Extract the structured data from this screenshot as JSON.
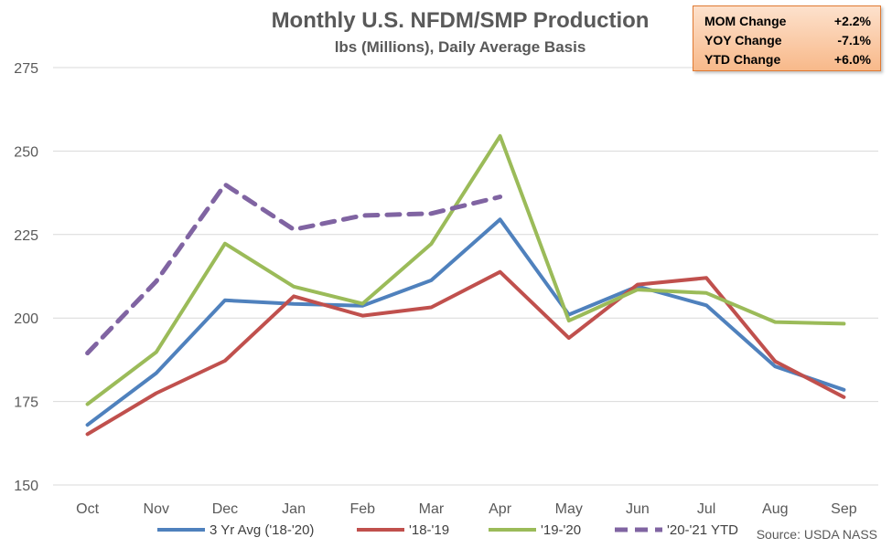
{
  "chart_data": {
    "type": "line",
    "title": "Monthly U.S. NFDM/SMP Production",
    "subtitle": "lbs (Millions), Daily Average Basis",
    "categories": [
      "Oct",
      "Nov",
      "Dec",
      "Jan",
      "Feb",
      "Mar",
      "Apr",
      "May",
      "Jun",
      "Jul",
      "Aug",
      "Sep"
    ],
    "ylim": [
      150,
      275
    ],
    "yticks": [
      150,
      175,
      200,
      225,
      250,
      275
    ],
    "grid": true,
    "legend": "bottom",
    "source": "Source: USDA NASS",
    "series": [
      {
        "name": "3 Yr Avg ('18-'20)",
        "color": "#4f81bd",
        "dash": false,
        "values": [
          168.0,
          183.5,
          205.3,
          204.2,
          203.7,
          211.3,
          229.5,
          201.0,
          209.5,
          203.8,
          185.5,
          178.5
        ]
      },
      {
        "name": "'18-'19",
        "color": "#c0504d",
        "dash": false,
        "values": [
          165.2,
          177.5,
          187.2,
          206.5,
          200.7,
          203.2,
          213.8,
          194.0,
          210.0,
          212.0,
          187.0,
          176.3
        ]
      },
      {
        "name": "'19-'20",
        "color": "#9bbb59",
        "dash": false,
        "values": [
          174.2,
          189.8,
          222.3,
          209.4,
          204.3,
          222.2,
          254.5,
          199.2,
          208.5,
          207.5,
          198.8,
          198.3
        ]
      },
      {
        "name": "'20-'21 YTD",
        "color": "#8064a2",
        "dash": true,
        "values": [
          189.5,
          211.0,
          240.0,
          226.5,
          230.7,
          231.3,
          236.3,
          null,
          null,
          null,
          null,
          null
        ]
      }
    ]
  },
  "stats": [
    {
      "label": "MOM Change",
      "value": "+2.2%"
    },
    {
      "label": "YOY Change",
      "value": "-7.1%"
    },
    {
      "label": "YTD Change",
      "value": "+6.0%"
    }
  ]
}
